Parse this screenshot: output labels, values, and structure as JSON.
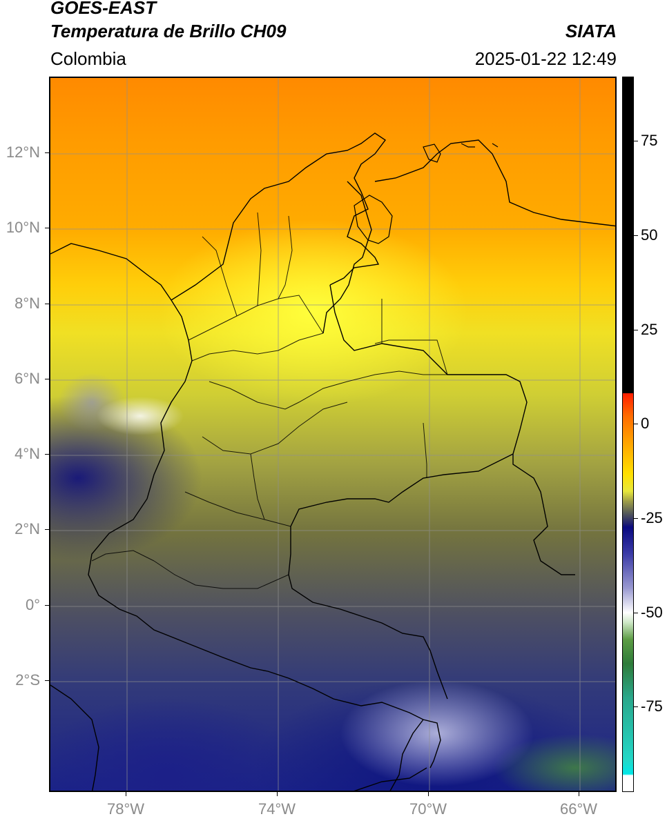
{
  "header": {
    "title_line1": "GOES-EAST",
    "title_line2": "Temperatura de Brillo CH09",
    "brand": "SIATA",
    "region": "Colombia",
    "timestamp": "2025-01-22 12:49"
  },
  "axes": {
    "lat_labels": [
      "12°N",
      "10°N",
      "8°N",
      "6°N",
      "4°N",
      "2°N",
      "0°",
      "2°S"
    ],
    "lon_labels": [
      "78°W",
      "74°W",
      "70°W",
      "66°W"
    ],
    "grid": true
  },
  "colorbar": {
    "labels": [
      "75",
      "50",
      "25",
      "0",
      "-25",
      "-50",
      "-75"
    ]
  },
  "colors": {
    "cold_cloud": "#0e1580",
    "warm_surface": "#ff8a00",
    "border": "#000000"
  }
}
